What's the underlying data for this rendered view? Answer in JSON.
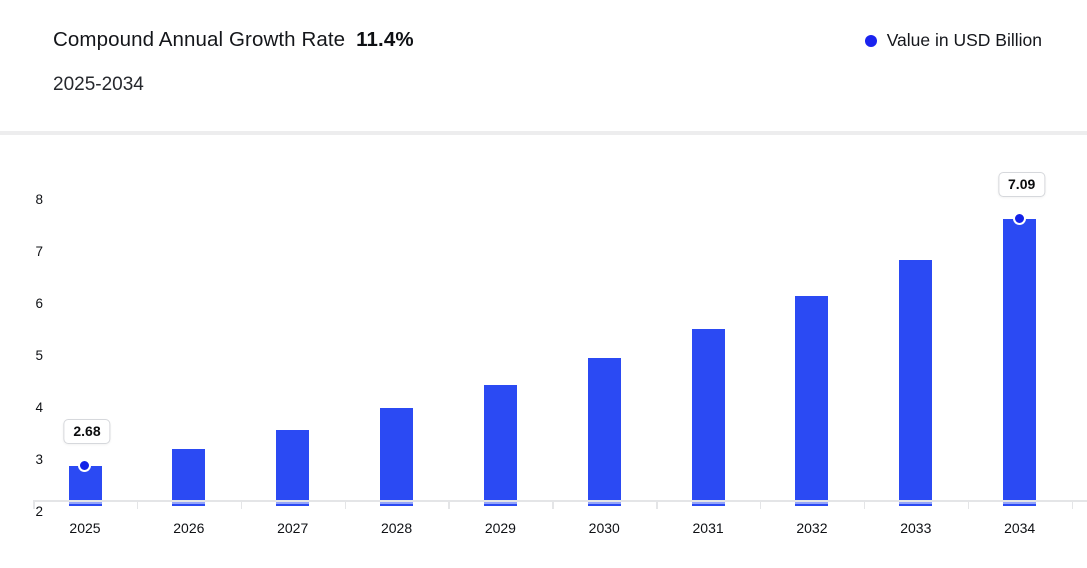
{
  "header": {
    "title": "Compound Annual Growth Rate",
    "cagr": "11.4%",
    "subtitle": "2025-2034"
  },
  "legend": {
    "label": "Value in USD Billion",
    "dot_color": "#1a23ef"
  },
  "colors": {
    "bar": "#2b4af3",
    "bar_base_stripe": "rgba(255,255,255,0.5)",
    "point_marker": "#1322e8",
    "axis_line": "#e4e5e7",
    "divider": "#ededee",
    "value_label_border": "#d6d8dc",
    "text": "#15171c"
  },
  "chart_data": {
    "type": "bar",
    "title": "Compound Annual Growth Rate 11.4%",
    "subtitle": "2025-2034",
    "unit": "USD Billion",
    "categories": [
      "2025",
      "2026",
      "2027",
      "2028",
      "2029",
      "2030",
      "2031",
      "2032",
      "2033",
      "2034"
    ],
    "series": [
      {
        "name": "Value in USD Billion",
        "values": [
          2.68,
          2.99,
          3.33,
          3.71,
          4.13,
          4.6,
          5.12,
          5.71,
          6.36,
          7.09
        ]
      }
    ],
    "annotations": [
      {
        "category": "2025",
        "text": "2.68"
      },
      {
        "category": "2034",
        "text": "7.09"
      }
    ],
    "ylim": [
      2,
      8
    ],
    "yticks": [
      8,
      7,
      6,
      5,
      4,
      3,
      2
    ],
    "xlabel": "",
    "ylabel": "",
    "grid": false,
    "legend_position": "top-right"
  }
}
